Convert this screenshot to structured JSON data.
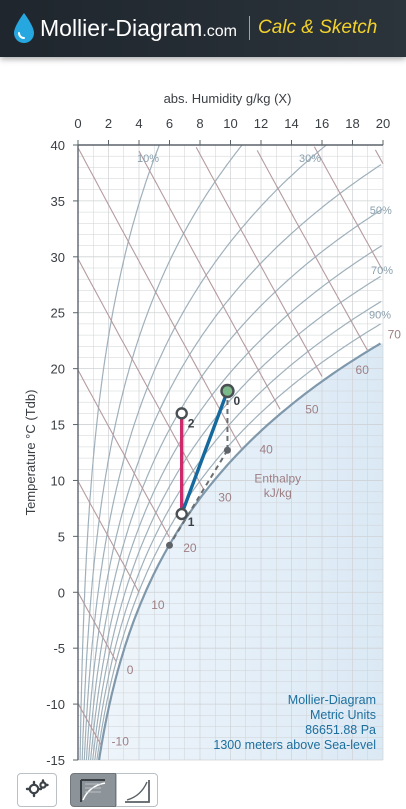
{
  "header": {
    "brand": "Mollier-Diagram",
    "brand_domain": ".com",
    "tagline": "Calc & Sketch",
    "colors": {
      "background": "#232a31",
      "tagline": "#f2d22c",
      "drop": "#27a7e0"
    }
  },
  "chart_data": {
    "type": "scatter",
    "title": "",
    "xlabel": "abs. Humidity g/kg (X)",
    "ylabel": "Temperature °C (Tdb)",
    "xlim": [
      0,
      20
    ],
    "ylim": [
      -15,
      40
    ],
    "x_ticks": [
      "0",
      "2",
      "4",
      "6",
      "8",
      "10",
      "12",
      "14",
      "16",
      "18",
      "20"
    ],
    "y_ticks": [
      "40",
      "35",
      "30",
      "25",
      "20",
      "15",
      "10",
      "5",
      "0",
      "-5",
      "-10",
      "-15"
    ],
    "grid": true,
    "rh_labels": [
      "10%",
      "30%",
      "50%",
      "70%",
      "90%"
    ],
    "enthalpy_labels": [
      "-10",
      "0",
      "10",
      "20",
      "30",
      "40",
      "50",
      "60",
      "70"
    ],
    "enthalpy_unit": [
      "Enthalpy",
      "kJ/kg"
    ],
    "points": [
      {
        "label": "0",
        "x": 9.8,
        "y": 18.0
      },
      {
        "label": "1",
        "x": 6.8,
        "y": 7.0
      },
      {
        "label": "2",
        "x": 6.8,
        "y": 16.0
      }
    ],
    "aux_points": [
      {
        "x": 9.8,
        "y": 12.7
      },
      {
        "x": 6.0,
        "y": 4.2
      }
    ],
    "series": [
      {
        "color": "#cc2a6a",
        "from": "1",
        "to": "2"
      },
      {
        "color": "#15699d",
        "from": "1",
        "to": "0"
      }
    ],
    "info": [
      "Mollier-Diagram",
      "Metric Units",
      "86651.88 Pa",
      "1300 meters above Sea-level"
    ]
  },
  "toolbar": {
    "buttons": [
      {
        "icon": "settings-gears-icon"
      },
      {
        "icon": "mollier-chart-icon"
      },
      {
        "icon": "psychrometric-chart-icon"
      }
    ]
  }
}
